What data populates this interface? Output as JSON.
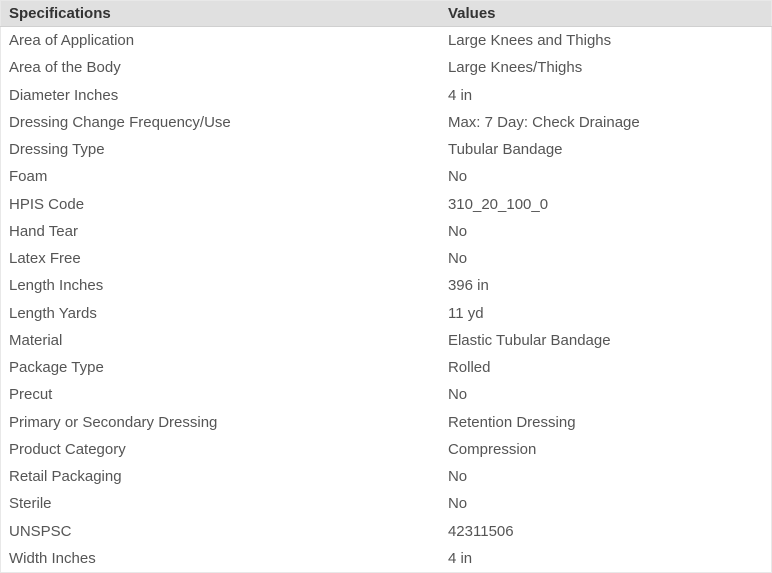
{
  "table": {
    "type": "table",
    "header_bg_color": "#e0e0e0",
    "header_text_color": "#333333",
    "body_text_color": "#555555",
    "border_color": "#e8e8e8",
    "font_family": "Segoe UI",
    "header_fontsize": 15,
    "body_fontsize": 15,
    "header_font_weight": 600,
    "line_height": 1.55,
    "column_widths": [
      "57%",
      "43%"
    ],
    "columns": [
      "Specifications",
      "Values"
    ],
    "rows": [
      {
        "spec": "Area of Application",
        "value": "Large Knees and Thighs"
      },
      {
        "spec": "Area of the Body",
        "value": "Large Knees/Thighs"
      },
      {
        "spec": "Diameter Inches",
        "value": "4 in"
      },
      {
        "spec": "Dressing Change Frequency/Use",
        "value": "Max: 7 Day: Check Drainage"
      },
      {
        "spec": "Dressing Type",
        "value": "Tubular Bandage"
      },
      {
        "spec": "Foam",
        "value": "No"
      },
      {
        "spec": "HPIS Code",
        "value": "310_20_100_0"
      },
      {
        "spec": "Hand Tear",
        "value": "No"
      },
      {
        "spec": "Latex Free",
        "value": "No"
      },
      {
        "spec": "Length Inches",
        "value": "396 in"
      },
      {
        "spec": "Length Yards",
        "value": "11 yd"
      },
      {
        "spec": "Material",
        "value": "Elastic Tubular Bandage"
      },
      {
        "spec": "Package Type",
        "value": "Rolled"
      },
      {
        "spec": "Precut",
        "value": "No"
      },
      {
        "spec": "Primary or Secondary Dressing",
        "value": "Retention Dressing"
      },
      {
        "spec": "Product Category",
        "value": "Compression"
      },
      {
        "spec": "Retail Packaging",
        "value": "No"
      },
      {
        "spec": "Sterile",
        "value": "No"
      },
      {
        "spec": "UNSPSC",
        "value": "42311506"
      },
      {
        "spec": "Width Inches",
        "value": "4 in"
      }
    ]
  }
}
